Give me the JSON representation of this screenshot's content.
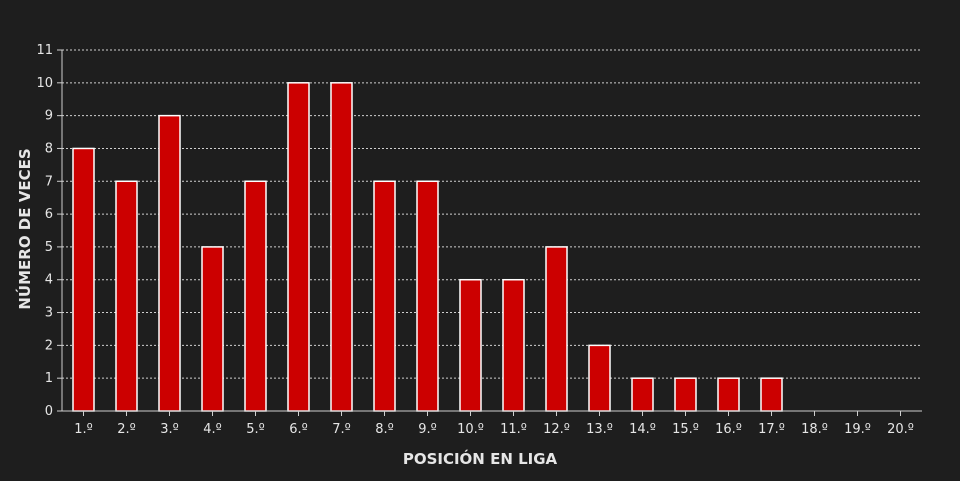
{
  "chart_data": {
    "type": "bar",
    "xlabel": "POSICIÓN EN LIGA",
    "ylabel": "NÚMERO DE VECES",
    "categories": [
      "1.º",
      "2.º",
      "3.º",
      "4.º",
      "5.º",
      "6.º",
      "7.º",
      "8.º",
      "9.º",
      "10.º",
      "11.º",
      "12.º",
      "13.º",
      "14.º",
      "15.º",
      "16.º",
      "17.º",
      "18.º",
      "19.º",
      "20.º"
    ],
    "values": [
      8,
      7,
      9,
      5,
      7,
      10,
      10,
      7,
      7,
      4,
      4,
      5,
      2,
      1,
      1,
      1,
      1,
      0,
      0,
      0
    ],
    "ylim": [
      0,
      11
    ],
    "yticks": [
      "0",
      "1",
      "2",
      "3",
      "4",
      "5",
      "6",
      "7",
      "8",
      "9",
      "10",
      "11"
    ],
    "grid": true,
    "colors": {
      "background": "#1e1e1e",
      "bar": "#cc0000",
      "bar_border": "#ffffff",
      "grid": "#d0d0d0",
      "axis": "#cfcfcf",
      "text": "#e6e6e6"
    }
  }
}
